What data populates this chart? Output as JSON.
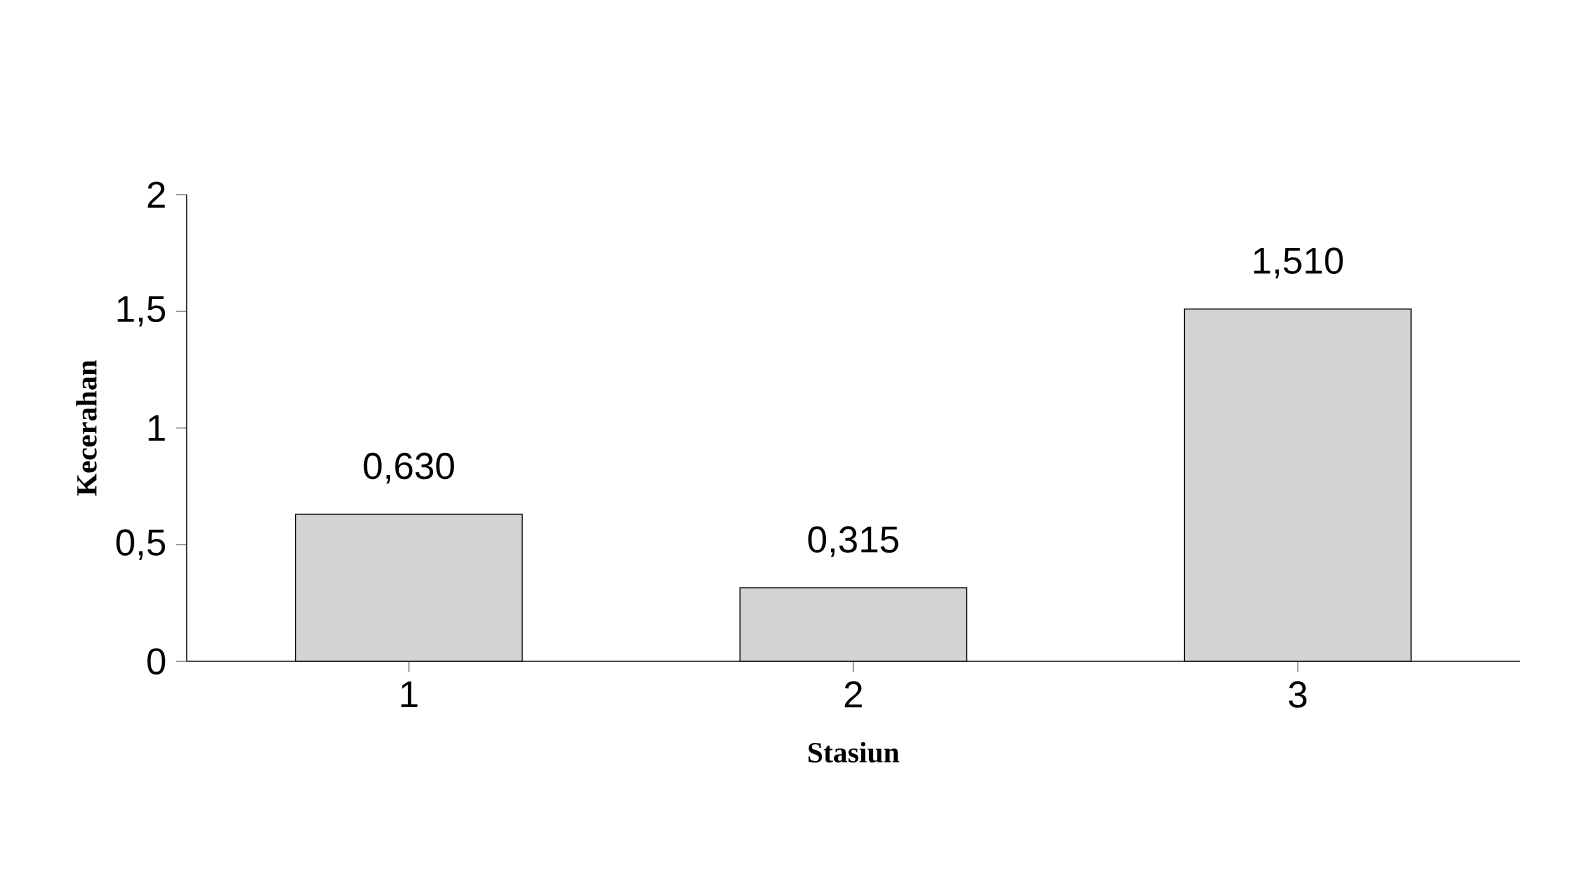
{
  "chart_data": {
    "type": "bar",
    "xlabel": "Stasiun",
    "ylabel": "Kecerahan",
    "categories": [
      "1",
      "2",
      "3"
    ],
    "values": [
      0.63,
      0.315,
      1.51
    ],
    "value_labels": [
      "0,630",
      "0,315",
      "1,510"
    ],
    "color": "#d4d4d4",
    "ylim": [
      0,
      2
    ],
    "yticks": [
      {
        "value": 0,
        "label": "0"
      },
      {
        "value": 0.5,
        "label": "0,5"
      },
      {
        "value": 1,
        "label": "1"
      },
      {
        "value": 1.5,
        "label": "1,5"
      },
      {
        "value": 2,
        "label": "2"
      }
    ],
    "grid": false
  }
}
